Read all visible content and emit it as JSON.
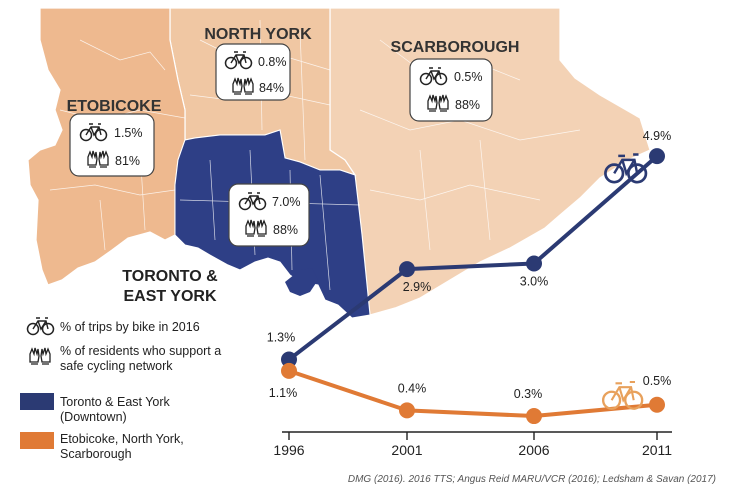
{
  "colors": {
    "downtown": "#2b3a73",
    "suburbs": "#e07a35",
    "map_light": "#f3d2b5",
    "map_mid": "#eeb98f",
    "map_dark": "#2e3f86",
    "district_text": "#333333"
  },
  "map": {
    "districts": [
      {
        "name": "NORTH YORK",
        "bike": "0.8%",
        "support": "84%"
      },
      {
        "name": "SCARBOROUGH",
        "bike": "0.5%",
        "support": "88%"
      },
      {
        "name": "ETOBICOKE",
        "bike": "1.5%",
        "support": "81%"
      },
      {
        "name_line1": "TORONTO &",
        "name_line2": "EAST YORK",
        "bike": "7.0%",
        "support": "88%"
      }
    ]
  },
  "legend": {
    "bike_desc": "% of trips by bike in 2016",
    "support_desc_line1": "% of residents who support a",
    "support_desc_line2": "safe cycling network",
    "series1_line1": "Toronto & East York",
    "series1_line2": "(Downtown)",
    "series2_line1": "Etobicoke, North York,",
    "series2_line2": "Scarborough"
  },
  "source": "DMG (2016). 2016 TTS; Angus Reid MARU/VCR (2016); Ledsham & Savan (2017)",
  "chart_data": {
    "type": "line",
    "x": [
      1996,
      2001,
      2006,
      2011
    ],
    "ylim": [
      0,
      5.5
    ],
    "series": [
      {
        "name": "Toronto & East York (Downtown)",
        "values": [
          1.3,
          2.9,
          3.0,
          4.9
        ],
        "labels": [
          "1.3%",
          "2.9%",
          "3.0%",
          "4.9%"
        ]
      },
      {
        "name": "Etobicoke, North York, Scarborough",
        "values": [
          1.1,
          0.4,
          0.3,
          0.5
        ],
        "labels": [
          "1.1%",
          "0.4%",
          "0.3%",
          "0.5%"
        ]
      }
    ],
    "x_tick_labels": [
      "1996",
      "2001",
      "2006",
      "2011"
    ],
    "xlabel": "",
    "ylabel": "",
    "grid": false
  }
}
